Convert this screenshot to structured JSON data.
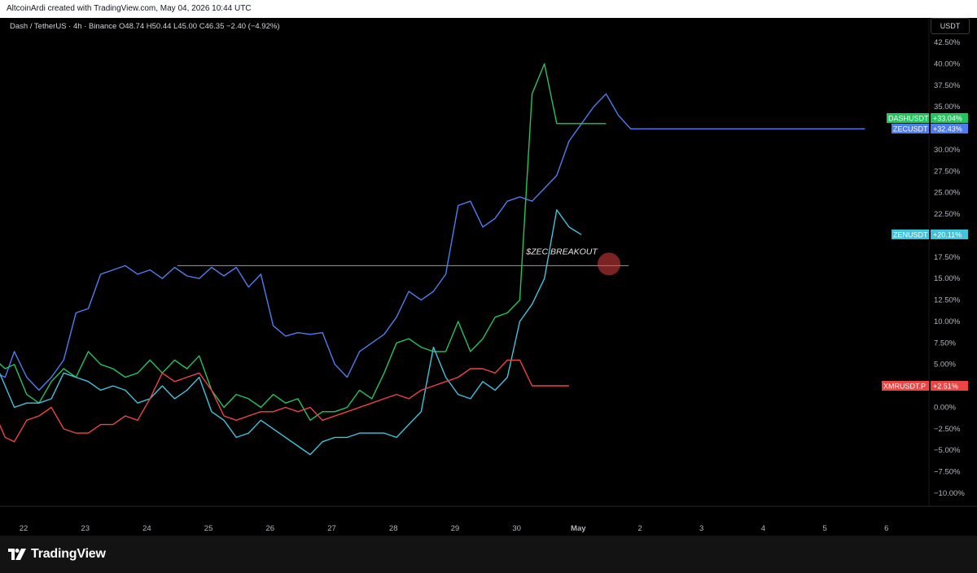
{
  "header": {
    "attribution": "AltcoinArdi created with TradingView.com, May 04, 2026 10:44 UTC"
  },
  "legend": {
    "symbol": "Dash / TetherUS",
    "interval": "4h",
    "exchange": "Binance",
    "ohlc": "O48.74  H50.44  L45.00  C46.35  −2.40 (−4.92%)",
    "text": "Dash / TetherUS · 4h · Binance   O48.74  H50.44  L45.00  C46.35  −2.40 (−4.92%)"
  },
  "currency": "USDT",
  "footer": {
    "brand": "TradingView"
  },
  "colors": {
    "DASHUSDT": "#22c55e",
    "ZECUSDT": "#4f7df0",
    "ZENUSDT": "#40c4dc",
    "XMRUSDT.P": "#ef4444",
    "background": "#000000"
  },
  "chart_data": {
    "type": "line",
    "ylabel": "",
    "xlabel": "",
    "ylim": [
      -10,
      42.5
    ],
    "y_ticks": [
      "42.50%",
      "40.00%",
      "37.50%",
      "35.00%",
      "32.50%",
      "30.00%",
      "27.50%",
      "25.00%",
      "22.50%",
      "20.00%",
      "17.50%",
      "15.00%",
      "12.50%",
      "10.00%",
      "7.50%",
      "5.00%",
      "2.50%",
      "0.00%",
      "−2.50%",
      "−5.00%",
      "−7.50%",
      "−10.00%"
    ],
    "x_ticks": [
      "22",
      "23",
      "24",
      "25",
      "26",
      "27",
      "28",
      "29",
      "30",
      "May",
      "2",
      "3",
      "4",
      "5",
      "6"
    ],
    "grid": false,
    "series": [
      {
        "name": "ZECUSDT",
        "label": "+32.43%",
        "x": [
          21.0,
          21.15,
          21.3,
          21.5,
          21.65,
          21.8,
          22.0,
          22.2,
          22.4,
          22.6,
          22.8,
          23.0,
          23.2,
          23.4,
          23.6,
          23.8,
          24.0,
          24.2,
          24.4,
          24.6,
          24.8,
          25.0,
          25.2,
          25.4,
          25.6,
          25.8,
          26.0,
          26.2,
          26.4,
          26.6,
          26.8,
          27.0,
          27.2,
          27.4,
          27.6,
          27.8,
          28.0,
          28.2,
          28.4,
          28.6,
          28.8,
          29.0,
          29.2,
          29.4,
          29.6,
          29.8,
          30.0,
          30.2,
          30.4,
          30.6,
          30.8,
          31.0,
          31.2,
          31.4,
          31.6,
          31.8,
          32.0,
          32.2,
          32.4,
          32.6,
          32.8,
          33.0,
          33.2,
          33.4,
          33.6,
          33.8,
          34.0,
          34.2,
          34.4,
          34.6,
          34.8,
          35.0,
          35.2,
          35.4,
          35.6
        ],
        "values": [
          0.5,
          3.5,
          3.0,
          4.0,
          3.5,
          6.5,
          3.5,
          2.0,
          3.5,
          5.5,
          11.0,
          11.5,
          15.5,
          16.0,
          16.5,
          15.5,
          16.0,
          15.0,
          16.3,
          15.3,
          15.0,
          16.3,
          15.3,
          16.3,
          14.0,
          15.5,
          9.5,
          8.3,
          8.7,
          8.5,
          8.7,
          5.0,
          3.5,
          6.5,
          7.5,
          8.5,
          10.5,
          13.5,
          12.5,
          13.5,
          15.5,
          23.5,
          24.0,
          21.0,
          22.0,
          24.0,
          24.5,
          24.0,
          25.5,
          27.0,
          31.0,
          33.0,
          35.0,
          36.5,
          34.0,
          32.43,
          32.43,
          32.43,
          32.43,
          32.43,
          32.43,
          32.43,
          32.43,
          32.43,
          32.43,
          32.43,
          32.43,
          32.43,
          32.43,
          32.43,
          32.43,
          32.43,
          32.43,
          32.43,
          32.43
        ]
      },
      {
        "name": "DASHUSDT",
        "label": "+33.04%",
        "x": [
          21.0,
          21.15,
          21.3,
          21.5,
          21.65,
          21.8,
          22.0,
          22.2,
          22.4,
          22.6,
          22.8,
          23.0,
          23.2,
          23.4,
          23.6,
          23.8,
          24.0,
          24.2,
          24.4,
          24.6,
          24.8,
          25.0,
          25.2,
          25.4,
          25.6,
          25.8,
          26.0,
          26.2,
          26.4,
          26.6,
          26.8,
          27.0,
          27.2,
          27.4,
          27.6,
          27.8,
          28.0,
          28.2,
          28.4,
          28.6,
          28.8,
          29.0,
          29.2,
          29.4,
          29.6,
          29.8,
          30.0,
          30.2,
          30.4,
          30.6,
          30.8,
          31.0,
          31.2,
          31.4
        ],
        "values": [
          1.0,
          5.5,
          6.0,
          5.5,
          4.5,
          5.0,
          1.5,
          0.5,
          3.0,
          4.5,
          3.5,
          6.5,
          5.0,
          4.5,
          3.5,
          4.0,
          5.5,
          4.0,
          5.5,
          4.5,
          6.0,
          2.0,
          0.0,
          1.5,
          1.0,
          0.0,
          1.5,
          0.5,
          1.0,
          -1.5,
          -0.5,
          -0.5,
          0.0,
          2.0,
          1.0,
          4.0,
          7.5,
          8.0,
          7.0,
          6.5,
          6.5,
          10.0,
          6.5,
          8.0,
          10.5,
          11.0,
          12.5,
          36.5,
          40.0,
          33.04,
          33.04,
          33.04,
          33.04,
          33.04
        ]
      },
      {
        "name": "ZENUSDT",
        "label": "+20.11%",
        "x": [
          21.0,
          21.15,
          21.3,
          21.5,
          21.65,
          21.8,
          22.0,
          22.2,
          22.4,
          22.6,
          22.8,
          23.0,
          23.2,
          23.4,
          23.6,
          23.8,
          24.0,
          24.2,
          24.4,
          24.6,
          24.8,
          25.0,
          25.2,
          25.4,
          25.6,
          25.8,
          26.0,
          26.2,
          26.4,
          26.6,
          26.8,
          27.0,
          27.2,
          27.4,
          27.6,
          27.8,
          28.0,
          28.2,
          28.4,
          28.6,
          28.8,
          29.0,
          29.2,
          29.4,
          29.6,
          29.8,
          30.0,
          30.2,
          30.4,
          30.6,
          30.8,
          31.0
        ],
        "values": [
          1.0,
          4.0,
          4.5,
          5.0,
          2.5,
          0.0,
          0.5,
          0.5,
          1.0,
          4.0,
          3.5,
          3.0,
          2.0,
          2.5,
          2.0,
          0.5,
          1.0,
          2.5,
          1.0,
          2.0,
          3.5,
          -0.5,
          -1.5,
          -3.5,
          -3.0,
          -1.5,
          -2.5,
          -3.5,
          -4.5,
          -5.5,
          -4.0,
          -3.5,
          -3.5,
          -3.0,
          -3.0,
          -3.0,
          -3.5,
          -2.0,
          -0.5,
          7.0,
          3.5,
          1.5,
          1.0,
          3.0,
          2.0,
          3.5,
          10.0,
          12.0,
          15.0,
          23.0,
          21.0,
          20.11
        ]
      },
      {
        "name": "XMRUSDT.P",
        "label": "+2.51%",
        "x": [
          21.0,
          21.15,
          21.3,
          21.5,
          21.65,
          21.8,
          22.0,
          22.2,
          22.4,
          22.6,
          22.8,
          23.0,
          23.2,
          23.4,
          23.6,
          23.8,
          24.0,
          24.2,
          24.4,
          24.6,
          24.8,
          25.0,
          25.2,
          25.4,
          25.6,
          25.8,
          26.0,
          26.2,
          26.4,
          26.6,
          26.8,
          27.0,
          27.2,
          27.4,
          27.6,
          27.8,
          28.0,
          28.2,
          28.4,
          28.6,
          28.8,
          29.0,
          29.2,
          29.4,
          29.6,
          29.8,
          30.0,
          30.2,
          30.4,
          30.6,
          30.8
        ],
        "values": [
          1.5,
          0.0,
          2.0,
          -1.0,
          -3.5,
          -4.0,
          -1.5,
          -1.0,
          0.0,
          -2.5,
          -3.0,
          -3.0,
          -2.0,
          -2.0,
          -1.0,
          -1.5,
          1.0,
          4.0,
          3.0,
          3.5,
          4.0,
          2.0,
          -1.0,
          -1.5,
          -1.0,
          -0.5,
          -0.5,
          0.0,
          -0.5,
          0.0,
          -1.5,
          -1.0,
          -0.5,
          0.0,
          0.5,
          1.0,
          1.5,
          1.0,
          2.0,
          2.5,
          3.0,
          3.5,
          4.5,
          4.5,
          4.0,
          5.5,
          5.5,
          2.51,
          2.51,
          2.51,
          2.51
        ]
      }
    ],
    "annotations": [
      {
        "text": "$ZEC BREAKOUT",
        "type": "horizontal-line",
        "y": 16.5
      }
    ]
  }
}
